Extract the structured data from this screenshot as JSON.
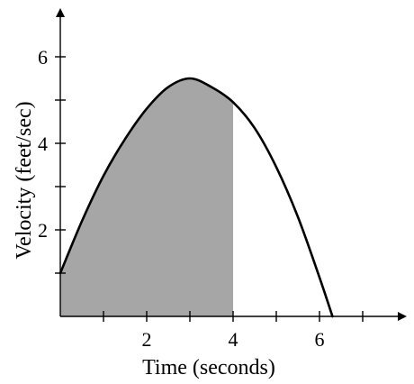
{
  "chart_data": {
    "type": "line",
    "title": "",
    "xlabel": "Time (seconds)",
    "ylabel": "Velocity (feet/sec)",
    "xlim": [
      0,
      8
    ],
    "ylim": [
      0,
      7
    ],
    "x_ticks": [
      1,
      2,
      3,
      4,
      5,
      6,
      7
    ],
    "x_tick_labels": [
      "",
      "2",
      "",
      "4",
      "",
      "6",
      ""
    ],
    "y_ticks": [
      1,
      2,
      3,
      4,
      5,
      6
    ],
    "y_tick_labels": [
      "",
      "2",
      "",
      "4",
      "",
      "6"
    ],
    "series": [
      {
        "x": [
          0,
          0.5,
          1,
          1.5,
          2,
          2.5,
          3,
          3.5,
          4,
          4.5,
          5,
          5.5,
          6,
          6.3
        ],
        "y": [
          1.0,
          2.2,
          3.25,
          4.1,
          4.8,
          5.3,
          5.5,
          5.3,
          4.95,
          4.35,
          3.45,
          2.3,
          0.9,
          0.0
        ]
      }
    ],
    "shaded_region": {
      "x_from": 0,
      "x_to": 4
    },
    "grid": false,
    "legend": "none",
    "colors": {
      "curve": "#000000",
      "shade": "#a6a6a6",
      "axis": "#000000"
    }
  }
}
